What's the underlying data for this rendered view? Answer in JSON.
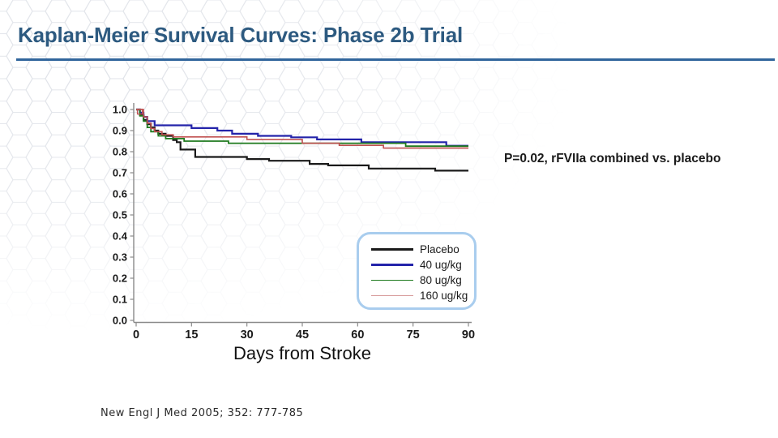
{
  "slide": {
    "title": "Kaplan-Meier Survival Curves: Phase 2b Trial",
    "annotation": "P=0.02, rFVIIa combined vs. placebo",
    "citation": "New Engl J Med 2005; 352: 777-785"
  },
  "colors": {
    "title": "#2d5a80",
    "title_rule": "#31659c",
    "legend_border": "#a9cdee",
    "axis": "#8a8a8a",
    "hex_pattern": "#dfe2e8"
  },
  "chart_data": {
    "type": "line",
    "subtype": "step-survival",
    "title": "",
    "xlabel": "Days from Stroke",
    "ylabel": "",
    "xlim": [
      0,
      90
    ],
    "ylim": [
      0.0,
      1.0
    ],
    "xticks": [
      0,
      15,
      30,
      45,
      60,
      75,
      90
    ],
    "yticks": [
      0.0,
      0.1,
      0.2,
      0.3,
      0.4,
      0.5,
      0.6,
      0.7,
      0.8,
      0.9,
      1.0
    ],
    "grid": false,
    "legend": {
      "position": "lower-right-box",
      "entries": [
        "Placebo",
        "40 ug/kg",
        "80 ug/kg",
        "160 ug/kg"
      ]
    },
    "start_marker": {
      "day": 1,
      "value": 0.99,
      "color": "#c05050"
    },
    "series": [
      {
        "name": "Placebo",
        "color": "#1a1a1a",
        "legend_color": "#1a1a1a",
        "width": 2.2,
        "points": [
          [
            0,
            1.0
          ],
          [
            1,
            0.975
          ],
          [
            2,
            0.95
          ],
          [
            3,
            0.93
          ],
          [
            4,
            0.915
          ],
          [
            5,
            0.9
          ],
          [
            6,
            0.885
          ],
          [
            8,
            0.875
          ],
          [
            10,
            0.855
          ],
          [
            11,
            0.845
          ],
          [
            12,
            0.81
          ],
          [
            16,
            0.775
          ],
          [
            30,
            0.765
          ],
          [
            36,
            0.757
          ],
          [
            47,
            0.742
          ],
          [
            52,
            0.735
          ],
          [
            63,
            0.72
          ],
          [
            81,
            0.71
          ],
          [
            90,
            0.71
          ]
        ]
      },
      {
        "name": "40 ug/kg",
        "color": "#2424aa",
        "legend_color": "#2424aa",
        "width": 2.2,
        "points": [
          [
            0,
            1.0
          ],
          [
            1,
            0.985
          ],
          [
            2,
            0.965
          ],
          [
            3,
            0.945
          ],
          [
            5,
            0.925
          ],
          [
            15,
            0.912
          ],
          [
            22,
            0.9
          ],
          [
            26,
            0.885
          ],
          [
            33,
            0.875
          ],
          [
            42,
            0.868
          ],
          [
            49,
            0.858
          ],
          [
            61,
            0.845
          ],
          [
            84,
            0.828
          ],
          [
            90,
            0.828
          ]
        ]
      },
      {
        "name": "80 ug/kg",
        "color": "#1e7a1e",
        "legend_color": "#1e7a1e",
        "width": 1.8,
        "points": [
          [
            0,
            1.0
          ],
          [
            1,
            0.97
          ],
          [
            2,
            0.945
          ],
          [
            3,
            0.915
          ],
          [
            4,
            0.895
          ],
          [
            6,
            0.875
          ],
          [
            8,
            0.862
          ],
          [
            13,
            0.85
          ],
          [
            25,
            0.84
          ],
          [
            73,
            0.826
          ],
          [
            90,
            0.826
          ]
        ]
      },
      {
        "name": "160 ug/kg",
        "color": "#c05050",
        "legend_color": "#d79a9a",
        "width": 1.6,
        "points": [
          [
            0,
            1.0
          ],
          [
            2,
            0.965
          ],
          [
            3,
            0.935
          ],
          [
            4,
            0.91
          ],
          [
            5,
            0.895
          ],
          [
            7,
            0.88
          ],
          [
            10,
            0.87
          ],
          [
            30,
            0.858
          ],
          [
            45,
            0.84
          ],
          [
            55,
            0.83
          ],
          [
            67,
            0.817
          ],
          [
            90,
            0.817
          ]
        ]
      }
    ]
  }
}
